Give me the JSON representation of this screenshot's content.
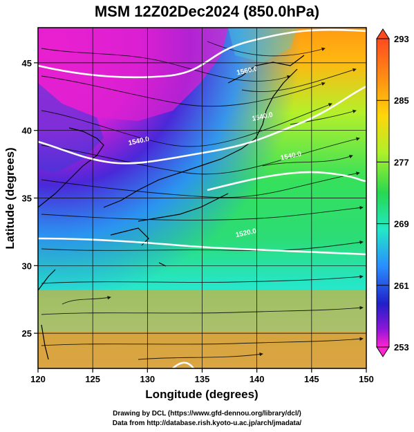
{
  "title": "MSM 12Z02Dec2024 (850.0hPa)",
  "x_axis": {
    "label": "Longitude (degrees)",
    "range": [
      120,
      150
    ],
    "ticks": [
      120,
      125,
      130,
      135,
      140,
      145,
      150
    ]
  },
  "y_axis": {
    "label": "Latitude  (degrees)",
    "range": [
      22.4,
      47.6
    ],
    "ticks": [
      25,
      30,
      35,
      40,
      45
    ]
  },
  "colorbar": {
    "min": 253,
    "max": 293,
    "tick_labels": [
      "293",
      "285",
      "277",
      "269",
      "261",
      "253"
    ],
    "colors": [
      "#ff4a20",
      "#ff9a12",
      "#ffd60a",
      "#aef02a",
      "#27d850",
      "#22e8c8",
      "#2a8cff",
      "#2020c8",
      "#8a16d8",
      "#ff24d0"
    ]
  },
  "contours": [
    {
      "label": "1560.0",
      "lon": 138.2,
      "lat": 44.1
    },
    {
      "label": "1540.0",
      "lon": 139.6,
      "lat": 40.7
    },
    {
      "label": "1540.0",
      "lon": 128.3,
      "lat": 38.9
    },
    {
      "label": "1540.0",
      "lon": 142.2,
      "lat": 37.8
    },
    {
      "label": "1520.0",
      "lon": 138.1,
      "lat": 32.1
    }
  ],
  "credits": [
    "Drawing by DCL (https://www.gfd-dennou.org/library/dcl/)",
    "Data from http://database.rish.kyoto-u.ac.jp/arch/jmadata/"
  ]
}
